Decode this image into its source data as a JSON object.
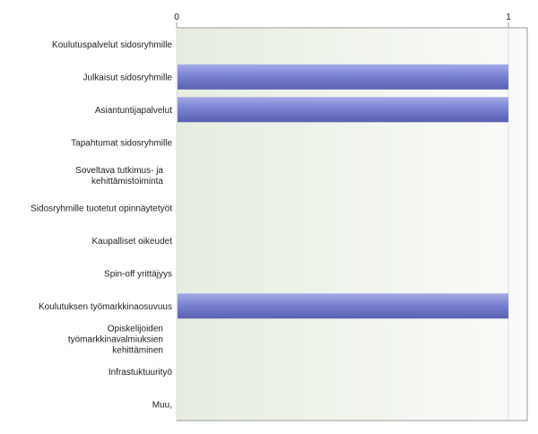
{
  "chart_data": {
    "type": "bar",
    "orientation": "horizontal",
    "categories": [
      [
        "Koulutuspalvelut sidosryhmille"
      ],
      [
        "Julkaisut sidosryhmille"
      ],
      [
        "Asiantuntijapalvelut"
      ],
      [
        "Tapahtumat sidosryhmille"
      ],
      [
        "Soveltava tutkimus- ja",
        "kehittämistoiminta"
      ],
      [
        "Sidosryhmille tuotetut opinnäytetyöt"
      ],
      [
        "Kaupalliset oikeudet"
      ],
      [
        "Spin-off yrittäjyys"
      ],
      [
        "Koulutuksen työmarkkinaosuvuus"
      ],
      [
        "Opiskelijoiden",
        "työmarkkinavalmiuksien",
        "kehittäminen"
      ],
      [
        "Infrastuktuurityö"
      ],
      [
        "Muu,"
      ]
    ],
    "values": [
      0,
      1,
      1,
      0,
      0,
      0,
      0,
      0,
      1,
      0,
      0,
      0
    ],
    "xlim": [
      0,
      1
    ],
    "xticks": [
      "0",
      "1"
    ],
    "tick_position": "top",
    "grid": true,
    "colors": {
      "bar": "#7b82d2",
      "bar_dark": "#5a60b0",
      "bar_light": "#a4aae6",
      "plot_bg_left": "#e6ede0",
      "plot_bg_right": "#fafbf9",
      "grid": "#dcdcdc",
      "axis": "#9a9a9a"
    }
  }
}
